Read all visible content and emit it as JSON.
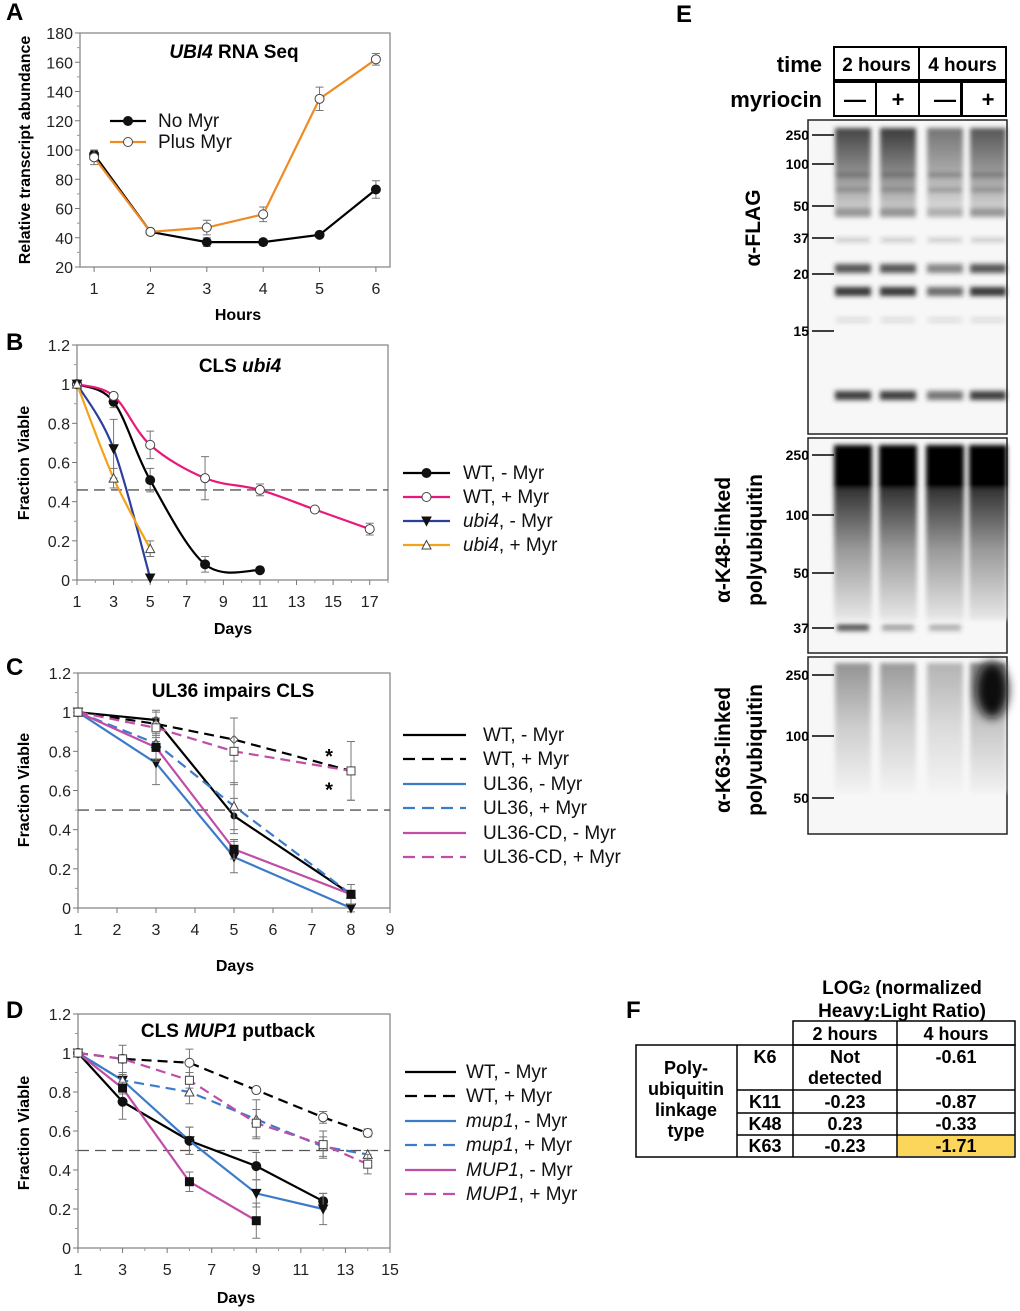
{
  "panel_labels": [
    "A",
    "B",
    "C",
    "D",
    "E",
    "F"
  ],
  "chart_data": [
    {
      "type": "line",
      "title": "UBI4 RNA Seq",
      "xlabel": "Hours",
      "ylabel": "Relative transcript abundance",
      "xlim": [
        0.75,
        6.25
      ],
      "ylim": [
        20,
        180
      ],
      "xticks": [
        1,
        2,
        3,
        4,
        5,
        6
      ],
      "yticks": [
        20,
        40,
        60,
        80,
        100,
        120,
        140,
        160,
        180
      ],
      "ytick_format": "int",
      "grid": false,
      "legend_placement": "inside-left",
      "series": [
        {
          "name": "No Myr",
          "color": "#000000",
          "marker": "filled-circle",
          "dash": false,
          "x": [
            1,
            2,
            3,
            4,
            5,
            6
          ],
          "y": [
            97,
            44,
            37,
            37,
            42,
            73
          ],
          "err": [
            3,
            1,
            3,
            2,
            1,
            6
          ]
        },
        {
          "name": "Plus Myr",
          "color": "#f08a24",
          "marker": "open-circle",
          "dash": false,
          "x": [
            1,
            2,
            3,
            4,
            5,
            6
          ],
          "y": [
            95,
            44,
            47,
            56,
            135,
            162
          ],
          "err": [
            5,
            1,
            5,
            5,
            8,
            4
          ]
        }
      ]
    },
    {
      "type": "line",
      "title": "CLS ubi4",
      "xlabel": "Days",
      "ylabel": "Fraction Viable",
      "xlim": [
        1,
        18
      ],
      "ylim": [
        0,
        1.2
      ],
      "xticks": [
        1,
        3,
        5,
        7,
        9,
        11,
        13,
        15,
        17
      ],
      "yticks": [
        0,
        0.2,
        0.4,
        0.6,
        0.8,
        1.0,
        1.2
      ],
      "ytick_format": "1dp",
      "grid": false,
      "smooth": true,
      "reference_line": 0.46,
      "legend_placement": "right",
      "series": [
        {
          "name": "WT, - Myr",
          "color": "#000000",
          "marker": "filled-circle",
          "dash": false,
          "x": [
            1,
            3,
            5,
            8,
            11
          ],
          "y": [
            1.0,
            0.91,
            0.51,
            0.08,
            0.05
          ],
          "err": [
            0,
            0.03,
            0.06,
            0.04,
            0
          ]
        },
        {
          "name": "WT, + Myr",
          "color": "#e8197b",
          "marker": "open-circle",
          "dash": false,
          "x": [
            1,
            3,
            5,
            8,
            11,
            14,
            17
          ],
          "y": [
            1.0,
            0.94,
            0.69,
            0.52,
            0.46,
            0.36,
            0.26
          ],
          "err": [
            0,
            0.01,
            0.07,
            0.11,
            0.03,
            0.01,
            0.03
          ]
        },
        {
          "name": "ubi4, - Myr",
          "color": "#2a3f9e",
          "marker": "filled-triangle-down",
          "dash": false,
          "x": [
            1,
            3,
            5
          ],
          "y": [
            1.0,
            0.67,
            0.01
          ],
          "err": [
            0,
            0.15,
            0
          ]
        },
        {
          "name": "ubi4, + Myr",
          "color": "#f5a21b",
          "marker": "open-triangle",
          "dash": false,
          "x": [
            1,
            3,
            5
          ],
          "y": [
            1.0,
            0.52,
            0.16
          ],
          "err": [
            0,
            0.05,
            0.04
          ]
        }
      ]
    },
    {
      "type": "line",
      "title": "UL36 impairs CLS",
      "xlabel": "Days",
      "ylabel": "Fraction Viable",
      "xlim": [
        1,
        9
      ],
      "ylim": [
        0,
        1.2
      ],
      "xticks": [
        1,
        2,
        3,
        4,
        5,
        6,
        7,
        8,
        9
      ],
      "yticks": [
        0,
        0.2,
        0.4,
        0.6,
        0.8,
        1.0,
        1.2
      ],
      "ytick_format": "1dp",
      "grid": false,
      "reference_line": 0.5,
      "legend_placement": "right",
      "annotations": [
        "*",
        "*"
      ],
      "series": [
        {
          "name": "WT, - Myr",
          "color": "#000000",
          "marker": "small-filled-circle",
          "dash": false,
          "x": [
            1,
            3,
            5,
            8
          ],
          "y": [
            1.0,
            0.96,
            0.47,
            0.07
          ],
          "err": [
            0,
            0.05,
            0.09,
            0.05
          ]
        },
        {
          "name": "WT, + Myr",
          "color": "#000000",
          "marker": "open-diamond",
          "dash": true,
          "x": [
            1,
            3,
            5,
            8
          ],
          "y": [
            1.0,
            0.94,
            0.86,
            0.7
          ],
          "err": [
            0,
            0.06,
            0.11,
            0.15
          ]
        },
        {
          "name": "UL36, - Myr",
          "color": "#3b7bc8",
          "marker": "filled-triangle-down",
          "dash": false,
          "x": [
            1,
            3,
            5,
            8
          ],
          "y": [
            1.0,
            0.74,
            0.26,
            0.0
          ],
          "err": [
            0,
            0.11,
            0.08,
            0.02
          ]
        },
        {
          "name": "UL36, + Myr",
          "color": "#3b7bc8",
          "marker": "open-triangle",
          "dash": true,
          "x": [
            1,
            3,
            5,
            8
          ],
          "y": [
            1.0,
            0.84,
            0.52,
            0.07
          ],
          "err": [
            0,
            0.08,
            0.12,
            0.05
          ]
        },
        {
          "name": "UL36-CD, - Myr",
          "color": "#c04ea6",
          "marker": "filled-square",
          "dash": false,
          "x": [
            1,
            3,
            5,
            8
          ],
          "y": [
            1.0,
            0.82,
            0.3,
            0.07
          ],
          "err": [
            0,
            0.07,
            0.05,
            0.05
          ]
        },
        {
          "name": "UL36-CD, + Myr",
          "color": "#c04ea6",
          "marker": "open-square",
          "dash": true,
          "x": [
            1,
            3,
            5,
            8
          ],
          "y": [
            1.0,
            0.92,
            0.8,
            0.7
          ],
          "err": [
            0,
            0.05,
            0.17,
            0.15
          ]
        }
      ]
    },
    {
      "type": "line",
      "title": "CLS MUP1 putback",
      "xlabel": "Days",
      "ylabel": "Fraction Viable",
      "xlim": [
        1,
        15
      ],
      "ylim": [
        0,
        1.2
      ],
      "xticks": [
        1,
        3,
        5,
        7,
        9,
        11,
        13,
        15
      ],
      "yticks": [
        0,
        0.2,
        0.4,
        0.6,
        0.8,
        1.0,
        1.2
      ],
      "ytick_format": "1dp",
      "grid": false,
      "reference_line": 0.5,
      "legend_placement": "right",
      "series": [
        {
          "name": "WT, - Myr",
          "color": "#000000",
          "marker": "filled-circle",
          "dash": false,
          "x": [
            1,
            3,
            6,
            9,
            12
          ],
          "y": [
            1.0,
            0.75,
            0.55,
            0.42,
            0.24
          ],
          "err": [
            0,
            0.09,
            0.07,
            0.07,
            0.04
          ]
        },
        {
          "name": "WT, + Myr",
          "color": "#000000",
          "marker": "open-circle",
          "dash": true,
          "x": [
            1,
            3,
            6,
            9,
            12,
            14
          ],
          "y": [
            1.0,
            0.97,
            0.95,
            0.81,
            0.67,
            0.59
          ],
          "err": [
            0,
            0.07,
            0.07,
            0.01,
            0.03,
            0.02
          ]
        },
        {
          "name": "mup1, - Myr",
          "color": "#3b7bc8",
          "marker": "filled-triangle-down",
          "dash": false,
          "x": [
            1,
            3,
            6,
            9,
            12
          ],
          "y": [
            1.0,
            0.86,
            0.55,
            0.28,
            0.2
          ],
          "err": [
            0,
            0.04,
            0.07,
            0.07,
            0.08
          ]
        },
        {
          "name": "mup1, + Myr",
          "color": "#3b7bc8",
          "marker": "open-triangle",
          "dash": true,
          "x": [
            1,
            3,
            6,
            9,
            12,
            14
          ],
          "y": [
            1.0,
            0.86,
            0.8,
            0.66,
            0.52,
            0.48
          ],
          "err": [
            0,
            0.03,
            0.06,
            0.1,
            0.05,
            0.02
          ]
        },
        {
          "name": "MUP1, - Myr",
          "color": "#c04ea6",
          "marker": "filled-square",
          "dash": false,
          "x": [
            1,
            3,
            6,
            9
          ],
          "y": [
            1.0,
            0.82,
            0.34,
            0.14
          ],
          "err": [
            0,
            0.03,
            0.05,
            0.09
          ]
        },
        {
          "name": "MUP1, + Myr",
          "color": "#c04ea6",
          "marker": "open-square",
          "dash": true,
          "x": [
            1,
            3,
            6,
            9,
            12,
            14
          ],
          "y": [
            1.0,
            0.97,
            0.86,
            0.64,
            0.53,
            0.43
          ],
          "err": [
            0,
            0.02,
            0.04,
            0.07,
            0.07,
            0.05
          ]
        }
      ]
    }
  ],
  "blot_e": {
    "time_label": "time",
    "myriocin_label": "myriocin",
    "time_groups": [
      "2 hours",
      "4 hours"
    ],
    "myriocin_states": [
      "—",
      "+",
      "—",
      "+"
    ],
    "blots": [
      {
        "antibody": [
          "α-FLAG"
        ],
        "markers": [
          "250",
          "100",
          "50",
          "37",
          "20",
          "15"
        ]
      },
      {
        "antibody": [
          "α-K48-linked",
          "polyubiquitin"
        ],
        "markers": [
          "250",
          "100",
          "50",
          "37"
        ]
      },
      {
        "antibody": [
          "α-K63-linked",
          "polyubiquitin"
        ],
        "markers": [
          "250",
          "100",
          "50"
        ]
      }
    ]
  },
  "table_f": {
    "title_line1_main": "LOG",
    "title_line1_sub": "2",
    "title_line1_rest": " (normalized",
    "title_line2": "Heavy:Light Ratio)",
    "columns": [
      "2 hours",
      "4 hours"
    ],
    "row_group_label": [
      "Poly-",
      "ubiquitin",
      "linkage",
      "type"
    ],
    "rows": [
      {
        "label": "K6",
        "values": [
          "Not detected",
          "-0.61"
        ]
      },
      {
        "label": "K11",
        "values": [
          "-0.23",
          "-0.87"
        ]
      },
      {
        "label": "K48",
        "values": [
          "0.23",
          "-0.33"
        ]
      },
      {
        "label": "K63",
        "values": [
          "-0.23",
          "-1.71"
        ]
      }
    ],
    "highlight_color": "#fcd55b",
    "highlight_cell": "K63 / 4 hours"
  }
}
